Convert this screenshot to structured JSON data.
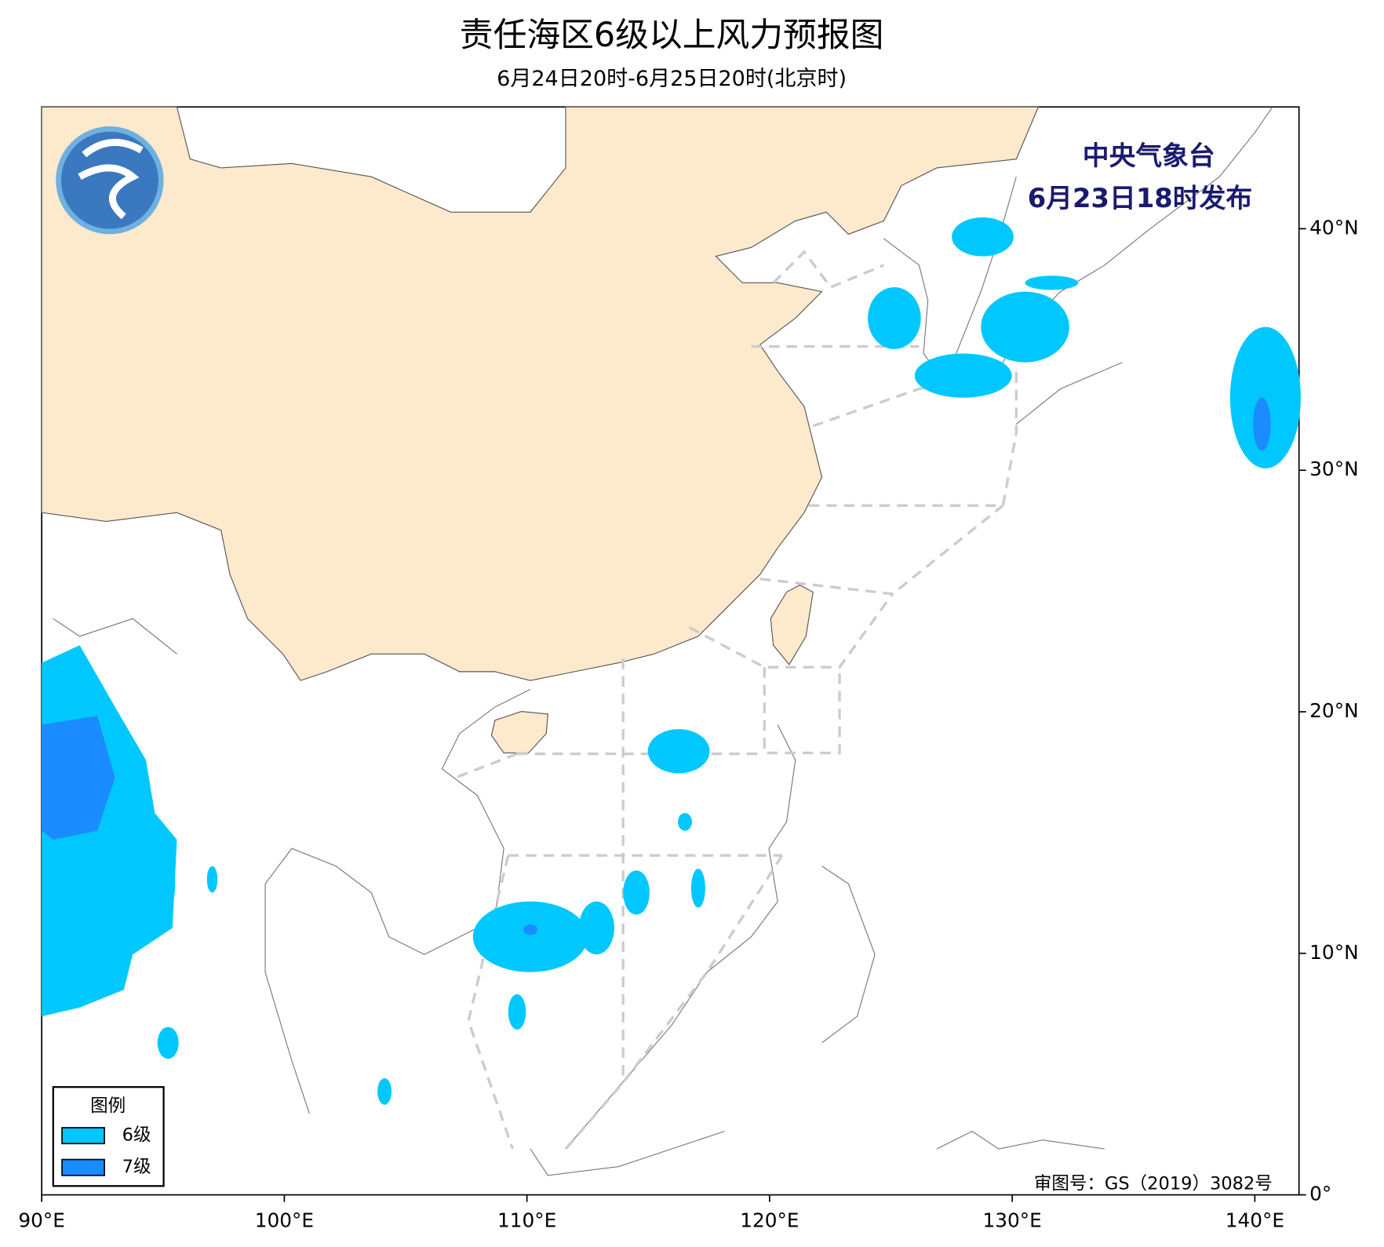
{
  "header": {
    "title": "责任海区6级以上风力预报图",
    "subtitle": "6月24日20时-6月25日20时(北京时)"
  },
  "issuer": {
    "name": "中央气象台",
    "time": "6月23日18时发布"
  },
  "axes": {
    "x_ticks": [
      {
        "value": 90,
        "label": "90°E"
      },
      {
        "value": 100,
        "label": "100°E"
      },
      {
        "value": 110,
        "label": "110°E"
      },
      {
        "value": 120,
        "label": "120°E"
      },
      {
        "value": 130,
        "label": "130°E"
      },
      {
        "value": 140,
        "label": "140°E"
      }
    ],
    "y_ticks": [
      {
        "value": 0,
        "label": "0°"
      },
      {
        "value": 10,
        "label": "10°N"
      },
      {
        "value": 20,
        "label": "20°N"
      },
      {
        "value": 30,
        "label": "30°N"
      },
      {
        "value": 40,
        "label": "40°N"
      }
    ]
  },
  "legend": {
    "title": "图例",
    "items": [
      {
        "label": "6级",
        "color": "#00c8ff"
      },
      {
        "label": "7级",
        "color": "#1a8cff"
      }
    ]
  },
  "approval": "审图号：GS（2019）3082号"
}
